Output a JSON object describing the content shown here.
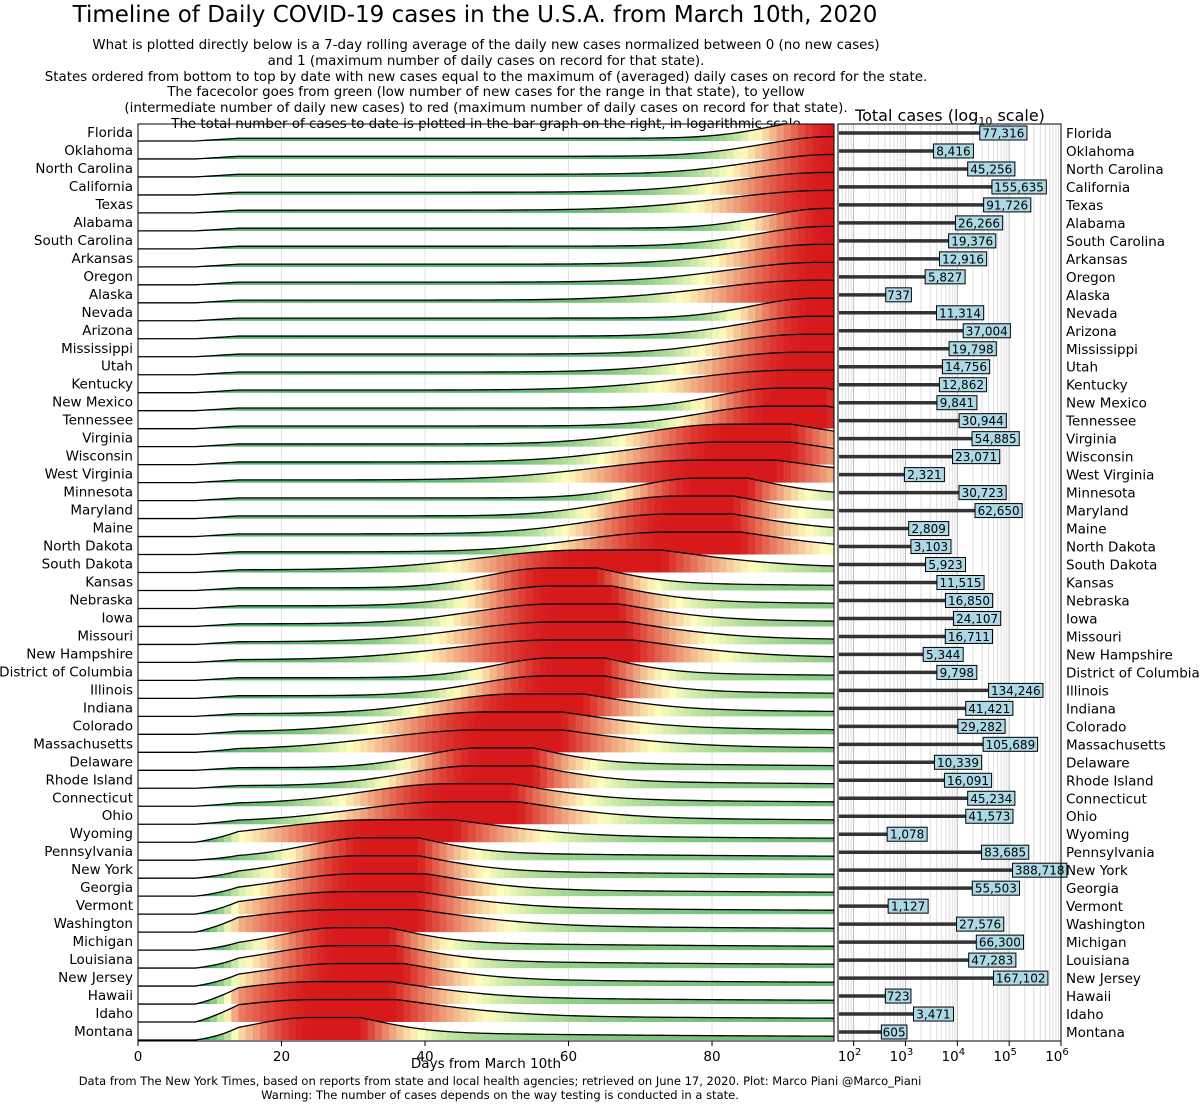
{
  "title": "Timeline of Daily COVID-19 cases in the U.S.A. from March 10th, 2020",
  "subtitle_lines": [
    "What is plotted directly below is a 7-day rolling average of the daily new cases normalized between 0 (no new cases)",
    "and 1 (maximum number of daily cases on record for that state).",
    "States ordered from bottom to top by date with new cases equal to the maximum of (averaged) daily cases on record for the state.",
    "The facecolor goes from green (low number of new cases for the range in that state), to yellow",
    "(intermediate number of daily new cases) to red (maximum number of daily cases on record for that state).",
    "The total number of cases to date is plotted in the bar graph on the right, in logarithmic scale"
  ],
  "footer_lines": [
    "Data from The New York Times, based on reports from state and local health agencies; retrieved on June 17, 2020. Plot: Marco Piani @Marco_Piani",
    "Warning: The number of cases depends on the way testing is conducted in a state."
  ],
  "colors": {
    "low": "#1a9850",
    "mid": "#ffffbf",
    "high": "#d7191c",
    "bar": "#add8e6",
    "barline": "#333333"
  },
  "chart_data": [
    {
      "type": "area",
      "title": "",
      "xlabel": "Days from March 10th",
      "xlim": [
        0,
        97
      ],
      "xticks": [
        0,
        20,
        40,
        60,
        80
      ],
      "series": [
        {
          "name": "Florida",
          "peak_day": 97
        },
        {
          "name": "Oklahoma",
          "peak_day": 97
        },
        {
          "name": "North Carolina",
          "peak_day": 97
        },
        {
          "name": "California",
          "peak_day": 96
        },
        {
          "name": "Texas",
          "peak_day": 96
        },
        {
          "name": "Alabama",
          "peak_day": 96
        },
        {
          "name": "South Carolina",
          "peak_day": 96
        },
        {
          "name": "Arkansas",
          "peak_day": 95
        },
        {
          "name": "Oregon",
          "peak_day": 95
        },
        {
          "name": "Alaska",
          "peak_day": 94
        },
        {
          "name": "Nevada",
          "peak_day": 94
        },
        {
          "name": "Arizona",
          "peak_day": 94
        },
        {
          "name": "Mississippi",
          "peak_day": 93
        },
        {
          "name": "Utah",
          "peak_day": 92
        },
        {
          "name": "Kentucky",
          "peak_day": 91
        },
        {
          "name": "New Mexico",
          "peak_day": 89
        },
        {
          "name": "Tennessee",
          "peak_day": 88
        },
        {
          "name": "Virginia",
          "peak_day": 82
        },
        {
          "name": "Wisconsin",
          "peak_day": 81
        },
        {
          "name": "West Virginia",
          "peak_day": 78
        },
        {
          "name": "Minnesota",
          "peak_day": 78
        },
        {
          "name": "Maryland",
          "peak_day": 75
        },
        {
          "name": "Maine",
          "peak_day": 74
        },
        {
          "name": "North Dakota",
          "peak_day": 74
        },
        {
          "name": "South Dakota",
          "peak_day": 62
        },
        {
          "name": "Kansas",
          "peak_day": 57
        },
        {
          "name": "Nebraska",
          "peak_day": 58
        },
        {
          "name": "Iowa",
          "peak_day": 58
        },
        {
          "name": "Missouri",
          "peak_day": 58
        },
        {
          "name": "New Hampshire",
          "peak_day": 58
        },
        {
          "name": "District of Columbia",
          "peak_day": 58
        },
        {
          "name": "Illinois",
          "peak_day": 57
        },
        {
          "name": "Indiana",
          "peak_day": 53
        },
        {
          "name": "Colorado",
          "peak_day": 49
        },
        {
          "name": "Massachusetts",
          "peak_day": 48
        },
        {
          "name": "Delaware",
          "peak_day": 48
        },
        {
          "name": "Rhode Island",
          "peak_day": 47
        },
        {
          "name": "Connecticut",
          "peak_day": 43
        },
        {
          "name": "Ohio",
          "peak_day": 43
        },
        {
          "name": "Wyoming",
          "peak_day": 33
        },
        {
          "name": "Pennsylvania",
          "peak_day": 32
        },
        {
          "name": "New York",
          "peak_day": 31
        },
        {
          "name": "Georgia",
          "peak_day": 31
        },
        {
          "name": "Vermont",
          "peak_day": 29
        },
        {
          "name": "Washington",
          "peak_day": 28
        },
        {
          "name": "Michigan",
          "peak_day": 28
        },
        {
          "name": "Louisiana",
          "peak_day": 28
        },
        {
          "name": "New Jersey",
          "peak_day": 28
        },
        {
          "name": "Hawaii",
          "peak_day": 25
        },
        {
          "name": "Idaho",
          "peak_day": 25
        },
        {
          "name": "Montana",
          "peak_day": 24
        }
      ]
    },
    {
      "type": "bar",
      "title": "Total cases (log",
      "title_sub": "10",
      "title_end": " scale)",
      "xscale": "log",
      "xlim": [
        50,
        1000000
      ],
      "xtick_base": "10",
      "xtick_exponents": [
        "2",
        "3",
        "4",
        "5",
        "6"
      ],
      "xtick_values": [
        100,
        1000,
        10000,
        100000,
        1000000
      ],
      "categories": [
        "Florida",
        "Oklahoma",
        "North Carolina",
        "California",
        "Texas",
        "Alabama",
        "South Carolina",
        "Arkansas",
        "Oregon",
        "Alaska",
        "Nevada",
        "Arizona",
        "Mississippi",
        "Utah",
        "Kentucky",
        "New Mexico",
        "Tennessee",
        "Virginia",
        "Wisconsin",
        "West Virginia",
        "Minnesota",
        "Maryland",
        "Maine",
        "North Dakota",
        "South Dakota",
        "Kansas",
        "Nebraska",
        "Iowa",
        "Missouri",
        "New Hampshire",
        "District of Columbia",
        "Illinois",
        "Indiana",
        "Colorado",
        "Massachusetts",
        "Delaware",
        "Rhode Island",
        "Connecticut",
        "Ohio",
        "Wyoming",
        "Pennsylvania",
        "New York",
        "Georgia",
        "Vermont",
        "Washington",
        "Michigan",
        "Louisiana",
        "New Jersey",
        "Hawaii",
        "Idaho",
        "Montana"
      ],
      "values": [
        77316,
        8416,
        45256,
        155635,
        91726,
        26266,
        19376,
        12916,
        5827,
        737,
        11314,
        37004,
        19798,
        14756,
        12862,
        9841,
        30944,
        54885,
        23071,
        2321,
        30723,
        62650,
        2809,
        3103,
        5923,
        11515,
        16850,
        24107,
        16711,
        5344,
        9798,
        134246,
        41421,
        29282,
        105689,
        10339,
        16091,
        45234,
        41573,
        1078,
        83685,
        388718,
        55503,
        1127,
        27576,
        66300,
        47283,
        167102,
        723,
        3471,
        605
      ],
      "value_labels": [
        "77,316",
        "8,416",
        "45,256",
        "155,635",
        "91,726",
        "26,266",
        "19,376",
        "12,916",
        "5,827",
        "737",
        "11,314",
        "37,004",
        "19,798",
        "14,756",
        "12,862",
        "9,841",
        "30,944",
        "54,885",
        "23,071",
        "2,321",
        "30,723",
        "62,650",
        "2,809",
        "3,103",
        "5,923",
        "11,515",
        "16,850",
        "24,107",
        "16,711",
        "5,344",
        "9,798",
        "134,246",
        "41,421",
        "29,282",
        "105,689",
        "10,339",
        "16,091",
        "45,234",
        "41,573",
        "1,078",
        "83,685",
        "388,718",
        "55,503",
        "1,127",
        "27,576",
        "66,300",
        "47,283",
        "167,102",
        "723",
        "3,471",
        "605"
      ]
    }
  ]
}
